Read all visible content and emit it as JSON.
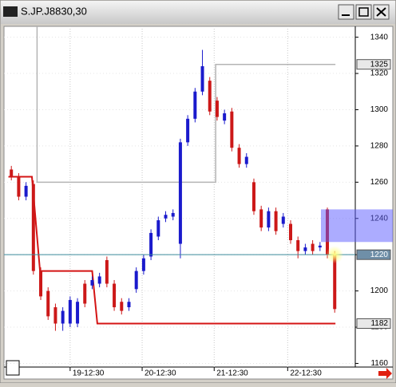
{
  "chart_data": {
    "type": "candlestick",
    "title": "S.JP.J8830,30",
    "x": [
      0,
      1,
      2,
      3,
      4,
      5,
      6,
      7,
      8,
      9,
      10,
      11,
      12,
      13,
      14,
      15,
      16,
      17,
      18,
      19,
      20,
      21,
      22,
      23,
      24,
      25,
      26,
      27,
      28,
      29,
      30,
      31,
      32,
      33,
      34,
      35,
      36,
      37,
      38,
      39,
      40,
      41,
      42,
      43,
      44
    ],
    "open": [
      1267,
      1263,
      1252,
      1259,
      1211,
      1200,
      1191,
      1182,
      1182,
      1182,
      1204,
      1203,
      1204,
      1217,
      1204,
      1194,
      1191,
      1201,
      1211,
      1219,
      1230,
      1240,
      1241,
      1226,
      1282,
      1295,
      1310,
      1316,
      1305,
      1294,
      1299,
      1279,
      1270,
      1260,
      1245,
      1235,
      1244,
      1237,
      1237,
      1228,
      1222,
      1226,
      1224,
      1245,
      1220
    ],
    "high": [
      1269,
      1265,
      1260,
      1261,
      1213,
      1202,
      1193,
      1191,
      1197,
      1196,
      1206,
      1208,
      1210,
      1219,
      1206,
      1196,
      1196,
      1213,
      1220,
      1234,
      1241,
      1244,
      1245,
      1284,
      1297,
      1312,
      1333,
      1318,
      1307,
      1300,
      1301,
      1281,
      1276,
      1262,
      1247,
      1246,
      1246,
      1243,
      1239,
      1230,
      1226,
      1228,
      1227,
      1246,
      1222
    ],
    "low": [
      1261,
      1250,
      1250,
      1209,
      1195,
      1184,
      1178,
      1178,
      1180,
      1180,
      1191,
      1201,
      1202,
      1202,
      1189,
      1187,
      1189,
      1199,
      1209,
      1217,
      1228,
      1238,
      1239,
      1218,
      1280,
      1293,
      1308,
      1297,
      1294,
      1292,
      1277,
      1268,
      1268,
      1242,
      1233,
      1233,
      1231,
      1235,
      1226,
      1218,
      1220,
      1220,
      1222,
      1218,
      1188
    ],
    "close": [
      1263,
      1252,
      1258,
      1211,
      1197,
      1186,
      1182,
      1189,
      1195,
      1194,
      1193,
      1206,
      1208,
      1204,
      1191,
      1189,
      1194,
      1211,
      1218,
      1232,
      1239,
      1242,
      1243,
      1282,
      1295,
      1310,
      1324,
      1299,
      1296,
      1298,
      1279,
      1270,
      1274,
      1244,
      1235,
      1244,
      1233,
      1241,
      1228,
      1222,
      1224,
      1222,
      1225,
      1220,
      1190
    ],
    "up_color": "#1a1acc",
    "down_color": "#cc1818",
    "lines": [
      {
        "color": "#b4b4b4",
        "x": [
          3.5,
          3.5,
          27.8,
          27.8,
          44.1
        ],
        "values": [
          1346,
          1260,
          1260,
          1325,
          1325
        ]
      },
      {
        "color": "#d41414",
        "x": [
          -0.4,
          2.8,
          3.9,
          11,
          11.7,
          44.1
        ],
        "values": [
          1263,
          1263,
          1211,
          1211,
          1182,
          1182
        ]
      }
    ],
    "xlim": [
      -1,
      46.8
    ],
    "ylim": [
      1158,
      1346
    ],
    "xticks": [
      {
        "value": 8.0,
        "label": "19-12:30"
      },
      {
        "value": 17.8,
        "label": "20-12:30"
      },
      {
        "value": 27.6,
        "label": "21-12:30"
      },
      {
        "value": 37.6,
        "label": "22-12:30"
      }
    ],
    "yticks": [
      1160,
      1180,
      1200,
      1220,
      1240,
      1260,
      1280,
      1300,
      1320,
      1340
    ],
    "price_markers": [
      1325,
      1220,
      1182
    ],
    "highlight_band": [
      1227,
      1245
    ],
    "grid": true
  }
}
